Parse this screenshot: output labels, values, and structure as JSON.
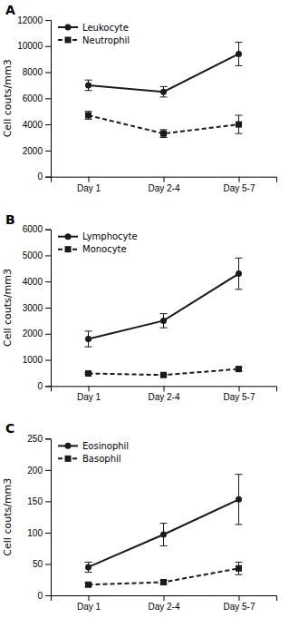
{
  "chart_data": [
    {
      "type": "line",
      "title": "A",
      "ylabel": "Cell couts/mm3",
      "categories": [
        "Day 1",
        "Day 2-4",
        "Day 5-7"
      ],
      "series": [
        {
          "name": "Leukocyte",
          "color": "#1a1a1a",
          "marker": "circle",
          "line_style": "solid",
          "values": [
            7000,
            6500,
            9400
          ],
          "errors": [
            400,
            400,
            900
          ]
        },
        {
          "name": "Neutrophil",
          "color": "#1a1a1a",
          "marker": "square",
          "line_style": "dashed",
          "values": [
            4700,
            3300,
            4000
          ],
          "errors": [
            300,
            300,
            700
          ]
        }
      ],
      "ylim": [
        0,
        12000
      ],
      "yticks": [
        0,
        2000,
        4000,
        6000,
        8000,
        10000,
        12000
      ],
      "legend": "upper left",
      "grid": false
    },
    {
      "type": "line",
      "title": "B",
      "ylabel": "Cell couts/mm3",
      "categories": [
        "Day 1",
        "Day 2-4",
        "Day 5-7"
      ],
      "series": [
        {
          "name": "Lymphocyte",
          "color": "#1a1a1a",
          "marker": "circle",
          "line_style": "solid",
          "values": [
            1800,
            2500,
            4300
          ],
          "errors": [
            300,
            270,
            600
          ]
        },
        {
          "name": "Monocyte",
          "color": "#1a1a1a",
          "marker": "square",
          "line_style": "dashed",
          "values": [
            480,
            420,
            650
          ],
          "errors": [
            40,
            30,
            80
          ]
        }
      ],
      "ylim": [
        0,
        6000
      ],
      "yticks": [
        0,
        1000,
        2000,
        3000,
        4000,
        5000,
        6000
      ],
      "legend": "upper left",
      "grid": false
    },
    {
      "type": "line",
      "title": "C",
      "ylabel": "Cell couts/mm3",
      "categories": [
        "Day 1",
        "Day 2-4",
        "Day 5-7"
      ],
      "series": [
        {
          "name": "Eosinophil",
          "color": "#1a1a1a",
          "marker": "circle",
          "line_style": "solid",
          "values": [
            45,
            97,
            153
          ],
          "errors": [
            8,
            18,
            40
          ]
        },
        {
          "name": "Basophil",
          "color": "#1a1a1a",
          "marker": "square",
          "line_style": "dashed",
          "values": [
            17,
            21,
            43
          ],
          "errors": [
            3,
            3,
            10
          ]
        }
      ],
      "ylim": [
        0,
        250
      ],
      "yticks": [
        0,
        50,
        100,
        150,
        200,
        250
      ],
      "legend": "upper left",
      "grid": false
    }
  ]
}
